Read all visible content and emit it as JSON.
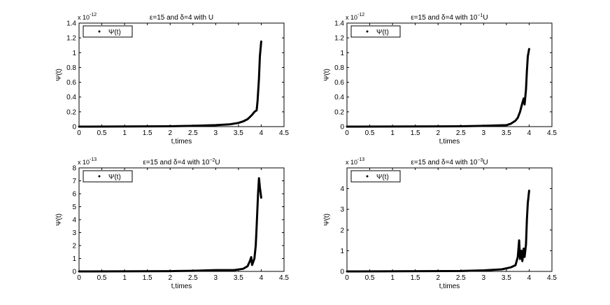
{
  "chart_data": [
    {
      "type": "line",
      "title_pre": "ε=15 and δ=4 with U",
      "title_sup": "",
      "title_post": "",
      "xlabel": "t,times",
      "ylabel": "Ψ(t)",
      "exponent_base": "x 10",
      "exponent_power": "-12",
      "xlim": [
        0,
        4.5
      ],
      "ylim": [
        0,
        1.4
      ],
      "xticks": [
        "0",
        "0.5",
        "1",
        "1.5",
        "2",
        "2.5",
        "3",
        "3.5",
        "4",
        "4.5"
      ],
      "yticks": [
        "0",
        "0.2",
        "0.4",
        "0.6",
        "0.8",
        "1",
        "1.2",
        "1.4"
      ],
      "legend": {
        "entry": "Ψ(t)",
        "position": "top-left"
      },
      "series": [
        {
          "name": "Ψ(t)",
          "x": [
            0,
            2.0,
            2.5,
            3.0,
            3.3,
            3.5,
            3.6,
            3.7,
            3.75,
            3.8,
            3.85,
            3.9,
            3.92,
            3.95,
            3.97,
            4.0
          ],
          "y": [
            0,
            0.005,
            0.01,
            0.02,
            0.03,
            0.05,
            0.07,
            0.1,
            0.13,
            0.16,
            0.2,
            0.22,
            0.35,
            0.65,
            0.95,
            1.15
          ]
        }
      ]
    },
    {
      "type": "line",
      "title_pre": "ε=15 and δ=4 with 10",
      "title_sup": "−1",
      "title_post": "U",
      "xlabel": "t,times",
      "ylabel": "Ψ(t)",
      "exponent_base": "x 10",
      "exponent_power": "-12",
      "xlim": [
        0,
        4.5
      ],
      "ylim": [
        0,
        1.4
      ],
      "xticks": [
        "0",
        "0.5",
        "1",
        "1.5",
        "2",
        "2.5",
        "3",
        "3.5",
        "4",
        "4.5"
      ],
      "yticks": [
        "0",
        "0.2",
        "0.4",
        "0.6",
        "0.8",
        "1",
        "1.2",
        "1.4"
      ],
      "legend": {
        "entry": "Ψ(t)",
        "position": "top-left"
      },
      "series": [
        {
          "name": "Ψ(t)",
          "x": [
            0,
            2.5,
            3.0,
            3.5,
            3.6,
            3.7,
            3.75,
            3.8,
            3.85,
            3.88,
            3.9,
            3.93,
            3.95,
            3.97,
            4.0
          ],
          "y": [
            0,
            0.005,
            0.01,
            0.02,
            0.04,
            0.08,
            0.12,
            0.2,
            0.32,
            0.38,
            0.3,
            0.5,
            0.75,
            0.95,
            1.05
          ]
        }
      ]
    },
    {
      "type": "line",
      "title_pre": "ε=15 and δ=4 with 10",
      "title_sup": "−2",
      "title_post": "U",
      "xlabel": "t,times",
      "ylabel": "Ψ(t)",
      "exponent_base": "x 10",
      "exponent_power": "-13",
      "xlim": [
        0,
        4.5
      ],
      "ylim": [
        0,
        8
      ],
      "xticks": [
        "0",
        "0.5",
        "1",
        "1.5",
        "2",
        "2.5",
        "3",
        "3.5",
        "4",
        "4.5"
      ],
      "yticks": [
        "0",
        "1",
        "2",
        "3",
        "4",
        "5",
        "6",
        "7",
        "8"
      ],
      "legend": {
        "entry": "Ψ(t)",
        "position": "top-left"
      },
      "series": [
        {
          "name": "Ψ(t)",
          "x": [
            0,
            2.0,
            2.5,
            2.8,
            3.0,
            3.4,
            3.6,
            3.7,
            3.75,
            3.78,
            3.8,
            3.83,
            3.85,
            3.88,
            3.9,
            3.93,
            3.95,
            3.97,
            4.0
          ],
          "y": [
            0,
            0.02,
            0.05,
            0.08,
            0.1,
            0.1,
            0.2,
            0.4,
            0.8,
            1.1,
            0.5,
            0.8,
            1.0,
            2.0,
            3.5,
            6.0,
            7.2,
            6.5,
            5.7
          ]
        }
      ]
    },
    {
      "type": "line",
      "title_pre": "ε=15 and δ=4 with 10",
      "title_sup": "−3",
      "title_post": "U",
      "xlabel": "t,times",
      "ylabel": "Ψ(t)",
      "exponent_base": "x 10",
      "exponent_power": "-13",
      "xlim": [
        0,
        4.5
      ],
      "ylim": [
        0,
        5
      ],
      "xticks": [
        "0",
        "0.5",
        "1",
        "1.5",
        "2",
        "2.5",
        "3",
        "3.5",
        "4",
        "4.5"
      ],
      "yticks": [
        "0",
        "1",
        "2",
        "3",
        "4"
      ],
      "legend": {
        "entry": "Ψ(t)",
        "position": "top-left"
      },
      "series": [
        {
          "name": "Ψ(t)",
          "x": [
            0,
            2.5,
            3.0,
            3.4,
            3.5,
            3.6,
            3.7,
            3.75,
            3.78,
            3.8,
            3.83,
            3.85,
            3.88,
            3.9,
            3.93,
            3.95,
            3.97,
            4.0
          ],
          "y": [
            0,
            0.02,
            0.05,
            0.1,
            0.15,
            0.2,
            0.3,
            0.7,
            1.5,
            0.6,
            1.0,
            0.5,
            1.1,
            0.7,
            1.3,
            2.5,
            3.3,
            3.9
          ]
        }
      ]
    }
  ]
}
